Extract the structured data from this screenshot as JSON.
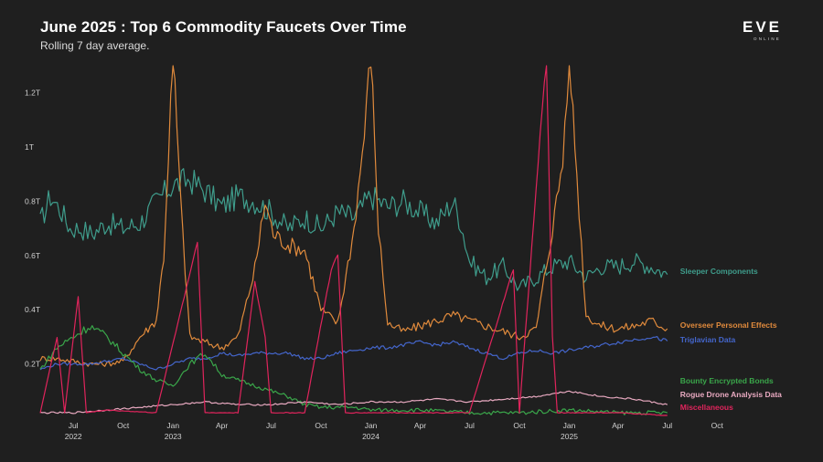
{
  "title": "June 2025 : Top 6 Commodity Faucets Over Time",
  "subtitle": "Rolling 7 day average.",
  "logo": {
    "word": "EVE",
    "sub": "ONLINE"
  },
  "chart_data": {
    "type": "line",
    "title": "June 2025 : Top 6 Commodity Faucets Over Time",
    "subtitle": "Rolling 7 day average.",
    "ylim": [
      0,
      1.3
    ],
    "y_ticks": [
      {
        "value": 0.2,
        "label": "0.2T"
      },
      {
        "value": 0.4,
        "label": "0.4T"
      },
      {
        "value": 0.6,
        "label": "0.6T"
      },
      {
        "value": 0.8,
        "label": "0.8T"
      },
      {
        "value": 1.0,
        "label": "1T"
      },
      {
        "value": 1.2,
        "label": "1.2T"
      }
    ],
    "x_range": [
      "2022-05-01",
      "2025-11-10"
    ],
    "x_ticks": [
      {
        "date": "2022-07-01",
        "label": "Jul",
        "year": "2022"
      },
      {
        "date": "2022-10-01",
        "label": "Oct",
        "year": ""
      },
      {
        "date": "2023-01-01",
        "label": "Jan",
        "year": "2023"
      },
      {
        "date": "2023-04-01",
        "label": "Apr",
        "year": ""
      },
      {
        "date": "2023-07-01",
        "label": "Jul",
        "year": ""
      },
      {
        "date": "2023-10-01",
        "label": "Oct",
        "year": ""
      },
      {
        "date": "2024-01-01",
        "label": "Jan",
        "year": "2024"
      },
      {
        "date": "2024-04-01",
        "label": "Apr",
        "year": ""
      },
      {
        "date": "2024-07-01",
        "label": "Jul",
        "year": ""
      },
      {
        "date": "2024-10-01",
        "label": "Oct",
        "year": ""
      },
      {
        "date": "2025-01-01",
        "label": "Jan",
        "year": "2025"
      },
      {
        "date": "2025-04-01",
        "label": "Apr",
        "year": ""
      },
      {
        "date": "2025-07-01",
        "label": "Jul",
        "year": ""
      },
      {
        "date": "2025-10-01",
        "label": "Oct",
        "year": ""
      }
    ],
    "grid": false,
    "legend": "direct labels at line ends (right)",
    "series": [
      {
        "name": "Sleeper Components",
        "color": "#3f9d8c",
        "label_value": 0.53,
        "values": [
          [
            "2022-05-01",
            0.72
          ],
          [
            "2022-05-20",
            0.82
          ],
          [
            "2022-06-10",
            0.76
          ],
          [
            "2022-06-25",
            0.7
          ],
          [
            "2022-07-15",
            0.7
          ],
          [
            "2022-08-05",
            0.68
          ],
          [
            "2022-09-01",
            0.72
          ],
          [
            "2022-10-01",
            0.7
          ],
          [
            "2022-11-01",
            0.72
          ],
          [
            "2022-12-01",
            0.8
          ],
          [
            "2023-01-01",
            0.86
          ],
          [
            "2023-02-01",
            0.88
          ],
          [
            "2023-03-01",
            0.84
          ],
          [
            "2023-04-01",
            0.78
          ],
          [
            "2023-05-01",
            0.82
          ],
          [
            "2023-06-01",
            0.8
          ],
          [
            "2023-07-01",
            0.76
          ],
          [
            "2023-08-01",
            0.7
          ],
          [
            "2023-09-01",
            0.74
          ],
          [
            "2023-10-01",
            0.7
          ],
          [
            "2023-11-01",
            0.76
          ],
          [
            "2023-12-01",
            0.74
          ],
          [
            "2024-01-01",
            0.82
          ],
          [
            "2024-02-01",
            0.78
          ],
          [
            "2024-03-01",
            0.8
          ],
          [
            "2024-04-01",
            0.76
          ],
          [
            "2024-05-01",
            0.72
          ],
          [
            "2024-06-01",
            0.8
          ],
          [
            "2024-06-15",
            0.72
          ],
          [
            "2024-07-01",
            0.58
          ],
          [
            "2024-08-01",
            0.52
          ],
          [
            "2024-09-01",
            0.56
          ],
          [
            "2024-10-01",
            0.48
          ],
          [
            "2024-11-01",
            0.52
          ],
          [
            "2024-12-01",
            0.56
          ],
          [
            "2025-01-01",
            0.58
          ],
          [
            "2025-02-01",
            0.52
          ],
          [
            "2025-03-01",
            0.56
          ],
          [
            "2025-04-01",
            0.56
          ],
          [
            "2025-05-01",
            0.58
          ],
          [
            "2025-06-01",
            0.56
          ],
          [
            "2025-07-01",
            0.53
          ]
        ]
      },
      {
        "name": "Overseer Personal Effects",
        "color": "#e08a3c",
        "label_value": 0.33,
        "values": [
          [
            "2022-05-01",
            0.22
          ],
          [
            "2022-06-01",
            0.22
          ],
          [
            "2022-07-01",
            0.21
          ],
          [
            "2022-08-01",
            0.2
          ],
          [
            "2022-09-01",
            0.2
          ],
          [
            "2022-10-01",
            0.21
          ],
          [
            "2022-11-01",
            0.3
          ],
          [
            "2022-12-01",
            0.36
          ],
          [
            "2022-12-15",
            0.6
          ],
          [
            "2023-01-01",
            1.35
          ],
          [
            "2023-01-15",
            0.8
          ],
          [
            "2023-02-01",
            0.3
          ],
          [
            "2023-03-01",
            0.28
          ],
          [
            "2023-04-01",
            0.26
          ],
          [
            "2023-05-01",
            0.3
          ],
          [
            "2023-06-01",
            0.55
          ],
          [
            "2023-06-20",
            0.8
          ],
          [
            "2023-07-05",
            0.68
          ],
          [
            "2023-08-01",
            0.64
          ],
          [
            "2023-09-01",
            0.62
          ],
          [
            "2023-10-01",
            0.4
          ],
          [
            "2023-11-01",
            0.35
          ],
          [
            "2023-12-01",
            0.7
          ],
          [
            "2023-12-20",
            1.05
          ],
          [
            "2024-01-01",
            1.35
          ],
          [
            "2024-01-15",
            0.7
          ],
          [
            "2024-02-01",
            0.35
          ],
          [
            "2024-03-01",
            0.32
          ],
          [
            "2024-04-01",
            0.34
          ],
          [
            "2024-05-01",
            0.36
          ],
          [
            "2024-06-01",
            0.38
          ],
          [
            "2024-07-01",
            0.36
          ],
          [
            "2024-08-01",
            0.34
          ],
          [
            "2024-09-01",
            0.32
          ],
          [
            "2024-10-01",
            0.3
          ],
          [
            "2024-11-01",
            0.33
          ],
          [
            "2024-12-01",
            0.7
          ],
          [
            "2024-12-20",
            0.95
          ],
          [
            "2025-01-01",
            1.35
          ],
          [
            "2025-01-15",
            0.9
          ],
          [
            "2025-02-01",
            0.38
          ],
          [
            "2025-03-01",
            0.34
          ],
          [
            "2025-04-01",
            0.33
          ],
          [
            "2025-05-01",
            0.34
          ],
          [
            "2025-06-01",
            0.36
          ],
          [
            "2025-07-01",
            0.33
          ]
        ]
      },
      {
        "name": "Triglavian Data",
        "color": "#4466cc",
        "label_value": 0.285,
        "values": [
          [
            "2022-05-01",
            0.18
          ],
          [
            "2022-06-01",
            0.2
          ],
          [
            "2022-07-01",
            0.2
          ],
          [
            "2022-08-01",
            0.2
          ],
          [
            "2022-09-01",
            0.21
          ],
          [
            "2022-10-01",
            0.22
          ],
          [
            "2022-11-01",
            0.2
          ],
          [
            "2022-12-01",
            0.18
          ],
          [
            "2023-01-01",
            0.2
          ],
          [
            "2023-02-01",
            0.22
          ],
          [
            "2023-03-01",
            0.22
          ],
          [
            "2023-04-01",
            0.24
          ],
          [
            "2023-05-01",
            0.23
          ],
          [
            "2023-06-01",
            0.24
          ],
          [
            "2023-07-01",
            0.24
          ],
          [
            "2023-08-01",
            0.24
          ],
          [
            "2023-09-01",
            0.22
          ],
          [
            "2023-10-01",
            0.22
          ],
          [
            "2023-11-01",
            0.24
          ],
          [
            "2023-12-01",
            0.25
          ],
          [
            "2024-01-01",
            0.26
          ],
          [
            "2024-02-01",
            0.26
          ],
          [
            "2024-03-01",
            0.27
          ],
          [
            "2024-04-01",
            0.28
          ],
          [
            "2024-05-01",
            0.27
          ],
          [
            "2024-06-01",
            0.28
          ],
          [
            "2024-07-01",
            0.26
          ],
          [
            "2024-08-01",
            0.24
          ],
          [
            "2024-09-01",
            0.22
          ],
          [
            "2024-10-01",
            0.24
          ],
          [
            "2024-11-01",
            0.25
          ],
          [
            "2024-12-01",
            0.24
          ],
          [
            "2025-01-01",
            0.25
          ],
          [
            "2025-02-01",
            0.26
          ],
          [
            "2025-03-01",
            0.27
          ],
          [
            "2025-04-01",
            0.28
          ],
          [
            "2025-05-01",
            0.29
          ],
          [
            "2025-06-01",
            0.3
          ],
          [
            "2025-07-01",
            0.285
          ]
        ]
      },
      {
        "name": "Bounty Encrypted Bonds",
        "color": "#3aa64a",
        "label_value": 0.1,
        "values": [
          [
            "2022-05-01",
            0.18
          ],
          [
            "2022-06-01",
            0.26
          ],
          [
            "2022-07-01",
            0.3
          ],
          [
            "2022-08-01",
            0.34
          ],
          [
            "2022-09-01",
            0.3
          ],
          [
            "2022-10-01",
            0.24
          ],
          [
            "2022-11-01",
            0.18
          ],
          [
            "2022-12-01",
            0.14
          ],
          [
            "2023-01-01",
            0.12
          ],
          [
            "2023-02-01",
            0.2
          ],
          [
            "2023-03-01",
            0.24
          ],
          [
            "2023-04-01",
            0.16
          ],
          [
            "2023-05-01",
            0.14
          ],
          [
            "2023-06-01",
            0.12
          ],
          [
            "2023-07-01",
            0.1
          ],
          [
            "2023-08-01",
            0.08
          ],
          [
            "2023-09-01",
            0.05
          ],
          [
            "2023-10-01",
            0.04
          ],
          [
            "2023-11-01",
            0.04
          ],
          [
            "2023-12-01",
            0.04
          ],
          [
            "2024-01-01",
            0.03
          ],
          [
            "2024-04-01",
            0.03
          ],
          [
            "2024-07-01",
            0.02
          ],
          [
            "2024-10-01",
            0.02
          ],
          [
            "2025-01-01",
            0.03
          ],
          [
            "2025-04-01",
            0.02
          ],
          [
            "2025-07-01",
            0.02
          ]
        ]
      },
      {
        "name": "Rogue Drone Analysis Data",
        "color": "#e8a9c0",
        "label_value": 0.055,
        "values": [
          [
            "2022-05-01",
            0.02
          ],
          [
            "2022-07-01",
            0.02
          ],
          [
            "2022-09-01",
            0.03
          ],
          [
            "2022-11-01",
            0.04
          ],
          [
            "2023-01-01",
            0.05
          ],
          [
            "2023-03-01",
            0.06
          ],
          [
            "2023-05-01",
            0.05
          ],
          [
            "2023-07-01",
            0.05
          ],
          [
            "2023-09-01",
            0.06
          ],
          [
            "2023-11-01",
            0.05
          ],
          [
            "2024-01-01",
            0.06
          ],
          [
            "2024-03-01",
            0.06
          ],
          [
            "2024-05-01",
            0.07
          ],
          [
            "2024-07-01",
            0.06
          ],
          [
            "2024-09-01",
            0.07
          ],
          [
            "2024-11-01",
            0.08
          ],
          [
            "2025-01-01",
            0.1
          ],
          [
            "2025-03-01",
            0.08
          ],
          [
            "2025-05-01",
            0.07
          ],
          [
            "2025-07-01",
            0.05
          ]
        ]
      },
      {
        "name": "Miscellaneous",
        "color": "#e0245c",
        "label_value": 0.01,
        "values": [
          [
            "2022-05-01",
            0.02
          ],
          [
            "2022-06-01",
            0.3
          ],
          [
            "2022-06-15",
            0.02
          ],
          [
            "2022-07-10",
            0.45
          ],
          [
            "2022-07-25",
            0.02
          ],
          [
            "2022-09-01",
            0.03
          ],
          [
            "2022-12-01",
            0.02
          ],
          [
            "2023-02-15",
            0.65
          ],
          [
            "2023-03-01",
            0.02
          ],
          [
            "2023-05-01",
            0.02
          ],
          [
            "2023-06-01",
            0.5
          ],
          [
            "2023-06-20",
            0.3
          ],
          [
            "2023-07-01",
            0.02
          ],
          [
            "2023-09-01",
            0.02
          ],
          [
            "2023-10-20",
            0.55
          ],
          [
            "2023-11-01",
            0.6
          ],
          [
            "2023-11-15",
            0.02
          ],
          [
            "2024-01-01",
            0.02
          ],
          [
            "2024-04-01",
            0.02
          ],
          [
            "2024-07-01",
            0.02
          ],
          [
            "2024-09-20",
            0.55
          ],
          [
            "2024-10-01",
            0.02
          ],
          [
            "2024-11-20",
            1.35
          ],
          [
            "2024-12-01",
            0.3
          ],
          [
            "2024-12-10",
            0.02
          ],
          [
            "2025-02-01",
            0.02
          ],
          [
            "2025-04-01",
            0.02
          ],
          [
            "2025-07-01",
            0.01
          ]
        ]
      }
    ]
  }
}
